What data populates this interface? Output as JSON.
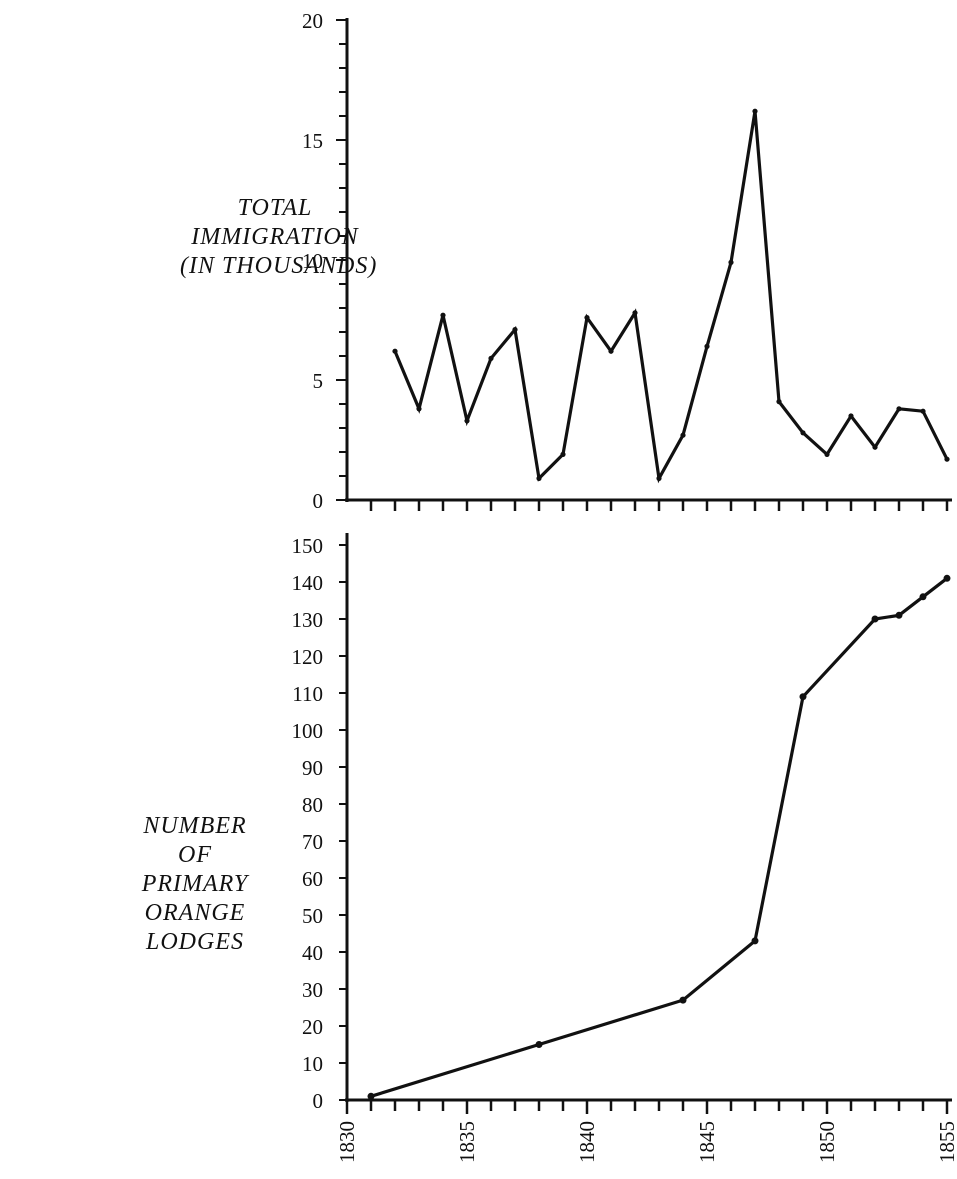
{
  "chart_data": [
    {
      "type": "line",
      "title": "",
      "ylabel_lines": [
        "TOTAL",
        "IMMIGRATION",
        "(IN THOUSANDS)"
      ],
      "xlabel": "",
      "ylim": [
        0,
        20
      ],
      "y_ticks": [
        0,
        5,
        10,
        15,
        20
      ],
      "xlim": [
        1830,
        1855
      ],
      "grid": false,
      "legend": "none",
      "series": [
        {
          "x": [
            1832,
            1833,
            1834,
            1835,
            1836,
            1837,
            1838,
            1839,
            1840,
            1841,
            1842,
            1843,
            1844,
            1845,
            1846,
            1847,
            1848,
            1849,
            1850,
            1851,
            1852,
            1853,
            1854,
            1855
          ],
          "y": [
            6.2,
            3.8,
            7.7,
            3.3,
            5.9,
            7.1,
            0.9,
            1.9,
            7.6,
            6.2,
            7.8,
            0.9,
            2.7,
            6.4,
            9.9,
            16.2,
            4.1,
            2.8,
            1.9,
            3.5,
            2.2,
            3.8,
            3.7,
            1.7
          ]
        }
      ]
    },
    {
      "type": "line",
      "title": "",
      "ylabel_lines": [
        "NUMBER",
        "OF",
        "PRIMARY",
        "ORANGE",
        "LODGES"
      ],
      "xlabel": "",
      "ylim": [
        0,
        150
      ],
      "y_ticks": [
        0,
        10,
        20,
        30,
        40,
        50,
        60,
        70,
        80,
        90,
        100,
        110,
        120,
        130,
        140,
        150
      ],
      "xlim": [
        1830,
        1855
      ],
      "x_ticks_labeled": [
        1830,
        1835,
        1840,
        1845,
        1850,
        1855
      ],
      "grid": false,
      "legend": "none",
      "series": [
        {
          "x": [
            1831,
            1838,
            1844,
            1847,
            1849,
            1852,
            1853,
            1854,
            1855
          ],
          "y": [
            1,
            15,
            27,
            43,
            109,
            130,
            131,
            136,
            141
          ]
        }
      ]
    }
  ]
}
